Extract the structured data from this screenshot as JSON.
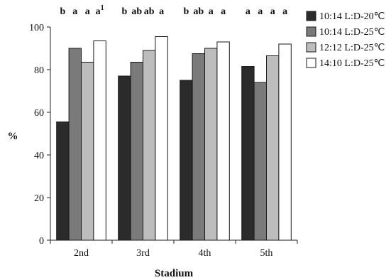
{
  "chart_data": {
    "type": "bar",
    "title": "",
    "xlabel": "Stadium",
    "ylabel": "%",
    "ylim": [
      0,
      100
    ],
    "yticks": [
      0,
      20,
      40,
      60,
      80,
      100
    ],
    "grid": false,
    "legend_position": "right",
    "categories": [
      "2nd",
      "3rd",
      "4th",
      "5th"
    ],
    "series": [
      {
        "name": "10:14 L:D-20℃",
        "color": "#2b2b2b",
        "values": [
          55.5,
          77,
          75,
          81.5
        ]
      },
      {
        "name": "10:14 L:D-25℃",
        "color": "#7a7a7a",
        "values": [
          90,
          83.5,
          87.5,
          74
        ]
      },
      {
        "name": "12:12 L:D-25℃",
        "color": "#bdbdbd",
        "values": [
          83.5,
          89,
          90,
          86.5
        ]
      },
      {
        "name": "14:10 L:D-25℃",
        "color": "#ffffff",
        "values": [
          93.5,
          95.5,
          93,
          92
        ]
      }
    ],
    "significance_labels": [
      [
        "b",
        "a",
        "a",
        "a1"
      ],
      [
        "b",
        "ab",
        "ab",
        "a"
      ],
      [
        "b",
        "ab",
        "a",
        "a"
      ],
      [
        "a",
        "a",
        "a",
        "a"
      ]
    ]
  }
}
